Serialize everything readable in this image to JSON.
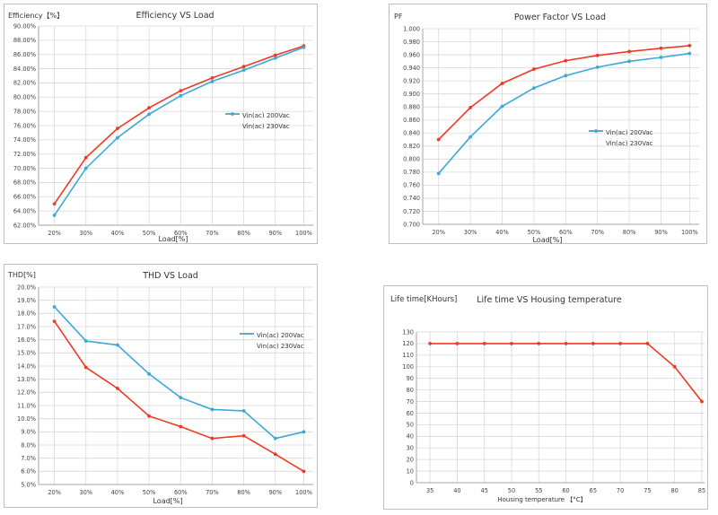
{
  "colors": {
    "series_a": "#ee3a22",
    "series_b": "#3aa9d8",
    "grid": "#d9d9d9",
    "axis": "#a6a6a6"
  },
  "chart_data": [
    {
      "id": "efficiency",
      "type": "line",
      "title": "Efficiency VS Load",
      "ylabel": "Efficiency【%】",
      "xlabel": "Load[%]",
      "x_ticks": [
        "20%",
        "30%",
        "40%",
        "50%",
        "60%",
        "70%",
        "80%",
        "90%",
        "100%"
      ],
      "y_ticks": [
        "62.00%",
        "64.00%",
        "66.00%",
        "68.00%",
        "70.00%",
        "72.00%",
        "74.00%",
        "76.00%",
        "78.00%",
        "80.00%",
        "82.00%",
        "84.00%",
        "86.00%",
        "88.00%",
        "90.00%"
      ],
      "ylim": [
        62,
        90
      ],
      "xlim": [
        15,
        102
      ],
      "grid": true,
      "legend_position": "center-right",
      "series": [
        {
          "name": "Vin(ac) 200Vac",
          "x": [
            20,
            30,
            40,
            50,
            60,
            70,
            80,
            90,
            99
          ],
          "y": [
            65.0,
            71.5,
            75.6,
            78.5,
            80.9,
            82.7,
            84.3,
            85.9,
            87.2
          ]
        },
        {
          "name": "Vin(ac) 230Vac",
          "x": [
            20,
            30,
            40,
            50,
            60,
            70,
            80,
            90,
            99
          ],
          "y": [
            63.4,
            70.0,
            74.3,
            77.6,
            80.2,
            82.2,
            83.8,
            85.5,
            87.0
          ]
        }
      ]
    },
    {
      "id": "power_factor",
      "type": "line",
      "title": "Power Factor VS Load",
      "ylabel": "PF",
      "xlabel": "Load[%]",
      "x_ticks": [
        "20%",
        "30%",
        "40%",
        "50%",
        "60%",
        "70%",
        "80%",
        "90%",
        "100%"
      ],
      "y_ticks": [
        "0.700",
        "0.720",
        "0.740",
        "0.760",
        "0.780",
        "0.800",
        "0.820",
        "0.840",
        "0.860",
        "0.880",
        "0.900",
        "0.920",
        "0.940",
        "0.960",
        "0.980",
        "1.000"
      ],
      "ylim": [
        0.7,
        1.0
      ],
      "xlim": [
        15,
        102
      ],
      "grid": true,
      "legend_position": "center-right",
      "series": [
        {
          "name": "Vin(ac) 200Vac",
          "x": [
            20,
            30,
            40,
            50,
            60,
            70,
            80,
            90,
            99
          ],
          "y": [
            0.83,
            0.879,
            0.916,
            0.938,
            0.951,
            0.959,
            0.965,
            0.97,
            0.974
          ]
        },
        {
          "name": "Vin(ac) 230Vac",
          "x": [
            20,
            30,
            40,
            50,
            60,
            70,
            80,
            90,
            99
          ],
          "y": [
            0.778,
            0.834,
            0.881,
            0.909,
            0.928,
            0.941,
            0.95,
            0.956,
            0.962
          ]
        }
      ]
    },
    {
      "id": "thd",
      "type": "line",
      "title": "THD VS Load",
      "ylabel": "THD[%]",
      "xlabel": "Load[%]",
      "x_ticks": [
        "20%",
        "30%",
        "40%",
        "50%",
        "60%",
        "70%",
        "80%",
        "90%",
        "100%"
      ],
      "y_ticks": [
        "5.0%",
        "6.0%",
        "7.0%",
        "8.0%",
        "9.0%",
        "10.0%",
        "11.0%",
        "12.0%",
        "13.0%",
        "14.0%",
        "15.0%",
        "16.0%",
        "17.0%",
        "18.0%",
        "19.0%",
        "20.0%"
      ],
      "ylim": [
        5,
        20
      ],
      "xlim": [
        15,
        102
      ],
      "grid": true,
      "legend_position": "center-right",
      "series": [
        {
          "name": "Vin(ac) 200Vac",
          "x": [
            20,
            30,
            40,
            50,
            60,
            70,
            80,
            90,
            99
          ],
          "y": [
            17.4,
            13.9,
            12.3,
            10.2,
            9.4,
            8.5,
            8.7,
            7.3,
            6.0
          ]
        },
        {
          "name": "Vin(ac) 230Vac",
          "x": [
            20,
            30,
            40,
            50,
            60,
            70,
            80,
            90,
            99
          ],
          "y": [
            18.5,
            15.9,
            15.6,
            13.4,
            11.6,
            10.7,
            10.6,
            8.5,
            9.0
          ]
        }
      ]
    },
    {
      "id": "lifetime",
      "type": "line",
      "title": "Life time VS Housing temperature",
      "ylabel": "Life time[KHours]",
      "xlabel": "Housing temperature 【°C】",
      "x_ticks": [
        "35",
        "40",
        "45",
        "50",
        "55",
        "60",
        "65",
        "70",
        "75",
        "80",
        "85"
      ],
      "y_ticks": [
        "0",
        "10",
        "20",
        "30",
        "40",
        "50",
        "60",
        "70",
        "80",
        "90",
        "100",
        "110",
        "120",
        "130"
      ],
      "ylim": [
        0,
        130
      ],
      "xlim": [
        32.5,
        85.5
      ],
      "grid": true,
      "legend_position": "none",
      "series": [
        {
          "name": "",
          "x": [
            35,
            40,
            45,
            50,
            55,
            60,
            65,
            70,
            75,
            80,
            85
          ],
          "y": [
            120,
            120,
            120,
            120,
            120,
            120,
            120,
            120,
            120,
            100,
            70
          ]
        }
      ]
    }
  ]
}
